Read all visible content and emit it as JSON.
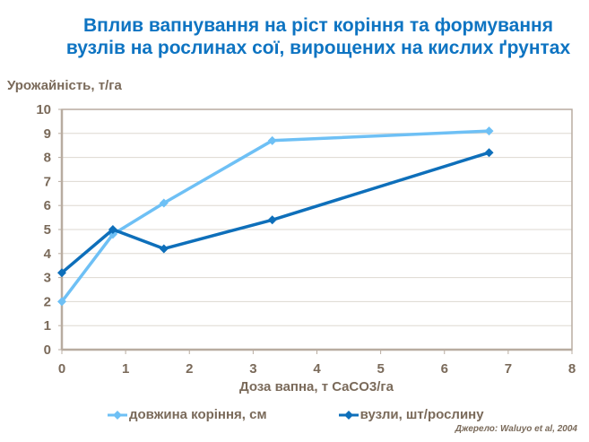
{
  "title": "Вплив вапнування на ріст коріння та формування вузлів на рослинах сої, вирощених на кислих ґрунтах",
  "source": "Джерело: Waluyo et al, 2004",
  "colors": {
    "title": "#0e74c2",
    "text": "#7a6a5a",
    "axis": "#b8aca0",
    "grid": "#ddd8d0",
    "series_light": "#6ec0f5",
    "series_dark": "#0e6fba"
  },
  "chart_data": {
    "type": "line",
    "title": "Вплив вапнування на ріст коріння та формування вузлів на рослинах сої, вирощених на кислих ґрунтах",
    "xlabel": "Доза вапна, т CaCO3/га",
    "ylabel": "Урожайність, т/га",
    "xlim": [
      0,
      8
    ],
    "ylim": [
      0,
      10
    ],
    "xticks": [
      0,
      1,
      2,
      3,
      4,
      5,
      6,
      7,
      8
    ],
    "yticks": [
      0,
      1,
      2,
      3,
      4,
      5,
      6,
      7,
      8,
      9,
      10
    ],
    "grid": "horizontal",
    "legend_position": "bottom",
    "series": [
      {
        "name": "довжина коріння, см",
        "color": "#6ec0f5",
        "marker": "diamond",
        "x": [
          0,
          0.8,
          1.6,
          3.3,
          6.7
        ],
        "values": [
          2.0,
          4.8,
          6.1,
          8.7,
          9.1
        ]
      },
      {
        "name": "вузли, шт/рослину",
        "color": "#0e6fba",
        "marker": "diamond",
        "x": [
          0,
          0.8,
          1.6,
          3.3,
          6.7
        ],
        "values": [
          3.2,
          5.0,
          4.2,
          5.4,
          8.2
        ]
      }
    ]
  }
}
